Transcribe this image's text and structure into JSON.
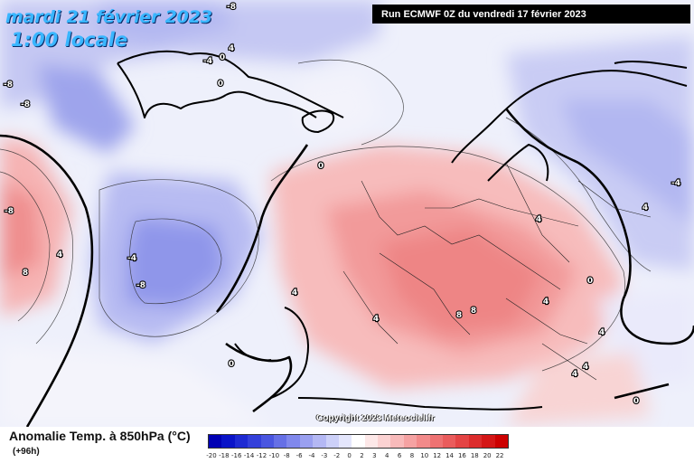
{
  "header": {
    "date": "mardi 21 février 2023",
    "time": "1:00 locale",
    "run": "Run ECMWF 0Z du vendredi 17 février 2023"
  },
  "footer": {
    "legend_title": "Anomalie Temp. à 850hPa (°C)",
    "lead_time": "(+96h)",
    "copyright": "Copyright 2023 Meteociel.fr"
  },
  "legend": {
    "ticks": [
      "-20",
      "-18",
      "-16",
      "-14",
      "-12",
      "-10",
      "-8",
      "-6",
      "-4",
      "-3",
      "-2",
      "0",
      "2",
      "3",
      "4",
      "6",
      "8",
      "10",
      "12",
      "14",
      "16",
      "18",
      "20",
      "22"
    ],
    "colors": [
      "#0000b4",
      "#0a14c8",
      "#1e2ad2",
      "#3440da",
      "#4a56e0",
      "#6670e6",
      "#8088ec",
      "#9aa0f0",
      "#b4b8f4",
      "#ccd0f8",
      "#e4e6fc",
      "#ffffff",
      "#fde8e8",
      "#fbd2d2",
      "#f8baba",
      "#f5a2a2",
      "#f28a8a",
      "#ee7272",
      "#ea5c5c",
      "#e44444",
      "#dc2c2c",
      "#d41616",
      "#cc0000"
    ]
  },
  "map_labels": [
    {
      "text": "-8",
      "id": "contour-label-m8-top"
    },
    {
      "text": "-8",
      "id": "contour-label-m8-west"
    },
    {
      "text": "-8",
      "id": "contour-label-m8-west2"
    },
    {
      "text": "4",
      "id": "contour-label-4-greenland"
    },
    {
      "text": "-4",
      "id": "contour-label-m4-iceland"
    },
    {
      "text": "0",
      "id": "contour-label-0-iceland"
    },
    {
      "text": "0",
      "id": "contour-label-0-iceland2"
    },
    {
      "text": "-8",
      "id": "contour-label-m8-left"
    },
    {
      "text": "8",
      "id": "contour-label-8-left"
    },
    {
      "text": "4",
      "id": "contour-label-4-left"
    },
    {
      "text": "-8",
      "id": "contour-label-m8-atlantic"
    },
    {
      "text": "-4",
      "id": "contour-label-m4-atlantic"
    },
    {
      "text": "0",
      "id": "contour-label-0-atlantic"
    },
    {
      "text": "4",
      "id": "contour-label-4-atlantic"
    },
    {
      "text": "4",
      "id": "contour-label-4-iberia"
    },
    {
      "text": "0",
      "id": "contour-label-0-morocco"
    },
    {
      "text": "8",
      "id": "contour-label-8-alps"
    },
    {
      "text": "8",
      "id": "contour-label-8-alps2"
    },
    {
      "text": "4",
      "id": "contour-label-4-poland"
    },
    {
      "text": "4",
      "id": "contour-label-4-hungary"
    },
    {
      "text": "4",
      "id": "contour-label-4-balkans"
    },
    {
      "text": "0",
      "id": "contour-label-0-balkans"
    },
    {
      "text": "4",
      "id": "contour-label-4-greece"
    },
    {
      "text": "4",
      "id": "contour-label-4-aegean"
    },
    {
      "text": "0",
      "id": "contour-label-0-turkey"
    },
    {
      "text": "-4",
      "id": "contour-label-m4-russia"
    },
    {
      "text": "4",
      "id": "contour-label-4-northafrica"
    }
  ]
}
